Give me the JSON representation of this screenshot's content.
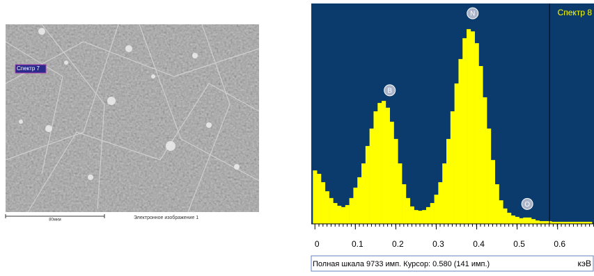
{
  "image_panel": {
    "spectrum_label": "Спектр 7",
    "scale_label": "80мкм",
    "caption": "Электронное изображение 1"
  },
  "chart_data": {
    "type": "histogram",
    "title": "Спектр 8",
    "bins": [
      -0.005,
      0.005,
      0.015,
      0.025,
      0.035,
      0.045,
      0.055,
      0.065,
      0.075,
      0.085,
      0.095,
      0.105,
      0.115,
      0.125,
      0.135,
      0.145,
      0.155,
      0.165,
      0.175,
      0.185,
      0.195,
      0.205,
      0.215,
      0.225,
      0.235,
      0.245,
      0.255,
      0.265,
      0.275,
      0.285,
      0.295,
      0.305,
      0.315,
      0.325,
      0.335,
      0.345,
      0.355,
      0.365,
      0.375,
      0.385,
      0.395,
      0.405,
      0.415,
      0.425,
      0.435,
      0.445,
      0.455,
      0.465,
      0.475,
      0.485,
      0.495,
      0.505,
      0.515,
      0.525,
      0.535,
      0.545,
      0.555,
      0.565,
      0.575,
      0.585,
      0.595,
      0.605,
      0.615,
      0.625,
      0.635,
      0.645,
      0.655,
      0.665,
      0.675,
      0.685
    ],
    "values": [
      2360,
      2210,
      1840,
      1440,
      1140,
      920,
      800,
      740,
      830,
      1140,
      1600,
      2060,
      2670,
      3440,
      4210,
      4970,
      5340,
      5430,
      5130,
      4510,
      3750,
      2670,
      1750,
      1140,
      770,
      610,
      580,
      610,
      740,
      920,
      1290,
      1840,
      2670,
      3750,
      4970,
      6200,
      7280,
      8200,
      8600,
      8500,
      7980,
      6970,
      5590,
      4210,
      2820,
      1750,
      1040,
      680,
      490,
      370,
      310,
      250,
      280,
      280,
      210,
      150,
      120,
      120,
      120,
      90,
      90,
      90,
      90,
      90,
      90,
      90,
      90,
      90,
      90
    ],
    "color": "#ffff00",
    "background": "#0b3a6c",
    "xlim": [
      -0.009,
      0.69
    ],
    "ylim": [
      0,
      9733
    ],
    "xticks": [
      0,
      0.1,
      0.2,
      0.3,
      0.4,
      0.5,
      0.6
    ],
    "cursor": 0.58,
    "annotations": [
      {
        "text": "B",
        "x": 0.185,
        "y": 5900
      },
      {
        "text": "N",
        "x": 0.39,
        "y": 9300
      },
      {
        "text": "O",
        "x": 0.525,
        "y": 880
      }
    ],
    "status": "Полная шкала 9733 имп. Курсор: 0.580 (141 имп.)",
    "x_unit": "кэВ"
  }
}
